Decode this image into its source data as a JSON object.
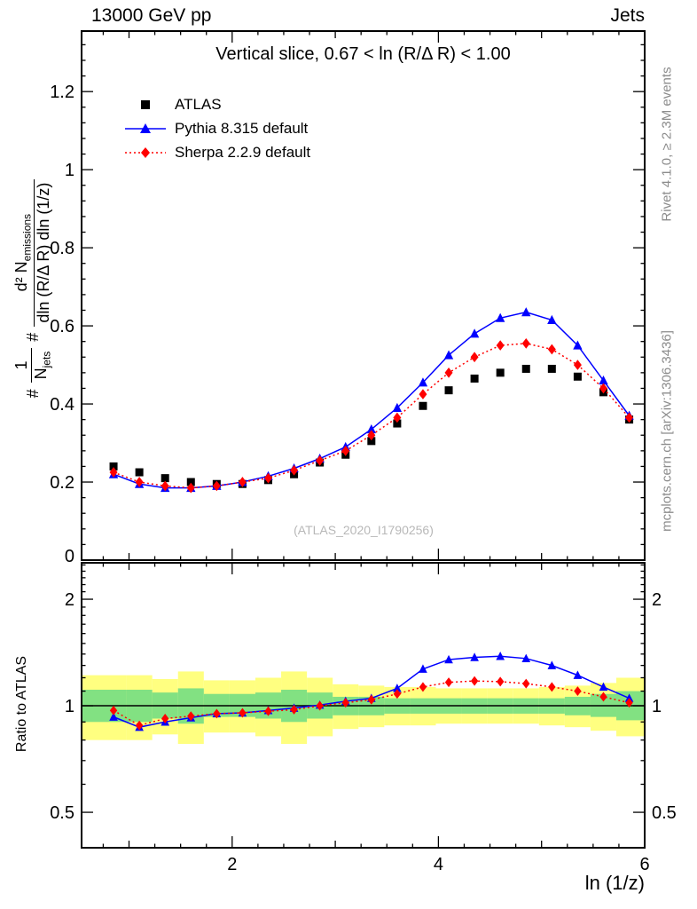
{
  "header": {
    "left": "13000 GeV pp",
    "right": "Jets"
  },
  "titles": {
    "main": "Vertical slice, 0.67 < ln (R/Δ R) < 1.00",
    "watermark": "(ATLAS_2020_I1790256)"
  },
  "side_notes": {
    "rivet": "Rivet 4.1.0, ≥ 2.3M events",
    "mcplots": "mcplots.cern.ch [arXiv:1306.3436]"
  },
  "axes": {
    "xlabel": "ln (1/z)",
    "ratio_ylabel": "Ratio to ATLAS",
    "main_ylabel": {
      "pre1": "#",
      "num1": "1",
      "den1_main": "N",
      "den1_sub": "jets",
      "pre2": "#",
      "num2_main": "d² N",
      "num2_sub": "emissions",
      "den2": "dln (R/Δ R) dln (1/z)"
    }
  },
  "chart_data": {
    "type": "line",
    "xlim": [
      0.54,
      6.0
    ],
    "main_ylim": [
      0,
      1.355
    ],
    "ratio_ylim": [
      0.397,
      2.535
    ],
    "ratio_yscale": "log",
    "bin_half_width": 0.125,
    "x": [
      0.85,
      1.1,
      1.35,
      1.6,
      1.85,
      2.1,
      2.35,
      2.6,
      2.85,
      3.1,
      3.35,
      3.6,
      3.85,
      4.1,
      4.35,
      4.6,
      4.85,
      5.1,
      5.35,
      5.6,
      5.85
    ],
    "xticks": [
      {
        "v": 2,
        "label": "2"
      },
      {
        "v": 4,
        "label": "4"
      },
      {
        "v": 6,
        "label": "6"
      }
    ],
    "main_yticks": [
      {
        "v": 0,
        "label": "0"
      },
      {
        "v": 0.2,
        "label": "0.2"
      },
      {
        "v": 0.4,
        "label": "0.4"
      },
      {
        "v": 0.6,
        "label": "0.6"
      },
      {
        "v": 0.8,
        "label": "0.8"
      },
      {
        "v": 1,
        "label": "1"
      },
      {
        "v": 1.2,
        "label": "1.2"
      }
    ],
    "ratio_yticks": [
      {
        "v": 0.5,
        "label": "0.5"
      },
      {
        "v": 1,
        "label": "1"
      },
      {
        "v": 2,
        "label": "2"
      }
    ],
    "series": [
      {
        "name": "ATLAS",
        "marker": "square",
        "color": "#000000",
        "line": "none",
        "values": [
          0.24,
          0.225,
          0.21,
          0.2,
          0.195,
          0.195,
          0.205,
          0.22,
          0.25,
          0.27,
          0.305,
          0.35,
          0.395,
          0.435,
          0.465,
          0.48,
          0.49,
          0.49,
          0.47,
          0.43,
          0.36
        ]
      },
      {
        "name": "Pythia 8.315 default",
        "marker": "triangle",
        "color": "#0000ff",
        "line": "solid",
        "values": [
          0.22,
          0.195,
          0.185,
          0.185,
          0.19,
          0.2,
          0.215,
          0.235,
          0.26,
          0.29,
          0.335,
          0.39,
          0.455,
          0.525,
          0.58,
          0.62,
          0.635,
          0.615,
          0.55,
          0.46,
          0.37
        ],
        "ratio": [
          0.93,
          0.87,
          0.9,
          0.925,
          0.95,
          0.955,
          0.97,
          0.985,
          1.005,
          1.03,
          1.05,
          1.12,
          1.27,
          1.35,
          1.37,
          1.38,
          1.36,
          1.3,
          1.22,
          1.13,
          1.05
        ]
      },
      {
        "name": "Sherpa 2.2.9 default",
        "marker": "diamond",
        "color": "#ff0000",
        "line": "dotted",
        "values": [
          0.225,
          0.2,
          0.19,
          0.185,
          0.19,
          0.2,
          0.21,
          0.23,
          0.255,
          0.28,
          0.32,
          0.365,
          0.425,
          0.48,
          0.52,
          0.55,
          0.555,
          0.54,
          0.5,
          0.44,
          0.365
        ],
        "ratio": [
          0.97,
          0.88,
          0.92,
          0.935,
          0.95,
          0.955,
          0.965,
          0.975,
          1.0,
          1.02,
          1.04,
          1.08,
          1.13,
          1.165,
          1.175,
          1.17,
          1.155,
          1.13,
          1.1,
          1.06,
          1.02
        ]
      }
    ],
    "bands": {
      "yellow": {
        "color": "#ffff80",
        "lo": [
          0.8,
          0.8,
          0.83,
          0.78,
          0.84,
          0.84,
          0.82,
          0.78,
          0.82,
          0.86,
          0.87,
          0.88,
          0.88,
          0.89,
          0.89,
          0.89,
          0.89,
          0.88,
          0.87,
          0.85,
          0.82
        ],
        "hi": [
          1.22,
          1.22,
          1.19,
          1.25,
          1.18,
          1.18,
          1.2,
          1.25,
          1.2,
          1.15,
          1.14,
          1.13,
          1.13,
          1.12,
          1.12,
          1.12,
          1.12,
          1.13,
          1.14,
          1.16,
          1.2
        ]
      },
      "green": {
        "color": "#82e182",
        "lo": [
          0.9,
          0.9,
          0.92,
          0.89,
          0.93,
          0.93,
          0.92,
          0.9,
          0.92,
          0.94,
          0.94,
          0.95,
          0.95,
          0.95,
          0.95,
          0.95,
          0.95,
          0.95,
          0.94,
          0.93,
          0.91
        ],
        "hi": [
          1.11,
          1.11,
          1.09,
          1.12,
          1.08,
          1.08,
          1.09,
          1.11,
          1.09,
          1.06,
          1.06,
          1.05,
          1.05,
          1.05,
          1.05,
          1.05,
          1.05,
          1.05,
          1.06,
          1.08,
          1.1
        ]
      }
    }
  }
}
